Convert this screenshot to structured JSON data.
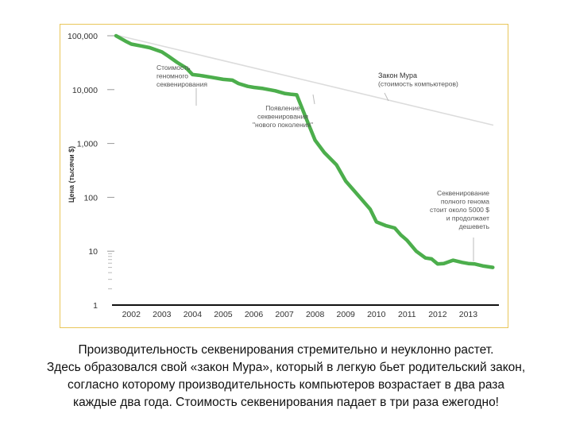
{
  "chart_data": {
    "type": "line",
    "ylabel": "Цена (тысячи $)",
    "y_scale": "log",
    "ylim": [
      1,
      100000
    ],
    "xlim": [
      2001.5,
      2014.0
    ],
    "y_ticks": [
      {
        "value": 100000,
        "label": "100,000"
      },
      {
        "value": 10000,
        "label": "10,000"
      },
      {
        "value": 1000,
        "label": "1,000"
      },
      {
        "value": 100,
        "label": "100"
      },
      {
        "value": 10,
        "label": "10"
      },
      {
        "value": 1,
        "label": "1"
      }
    ],
    "x_ticks": [
      "2002",
      "2003",
      "2004",
      "2005",
      "2006",
      "2007",
      "2008",
      "2009",
      "2010",
      "2011",
      "2012",
      "2013"
    ],
    "series": [
      {
        "color": "#4cae4c",
        "x": [
          2001.5,
          2001.8,
          2002.0,
          2002.3,
          2002.6,
          2003.0,
          2003.2,
          2003.5,
          2003.8,
          2004.0,
          2004.2,
          2004.6,
          2005.0,
          2005.3,
          2005.5,
          2005.8,
          2006.0,
          2006.3,
          2006.7,
          2007.0,
          2007.2,
          2007.4,
          2007.7,
          2008.0,
          2008.3,
          2008.7,
          2009.0,
          2009.4,
          2009.8,
          2010.0,
          2010.3,
          2010.6,
          2010.8,
          2011.0,
          2011.3,
          2011.6,
          2011.8,
          2012.0,
          2012.2,
          2012.5,
          2012.8,
          2013.0,
          2013.2,
          2013.5,
          2013.8
        ],
        "y": [
          100000,
          80000,
          70000,
          65000,
          60000,
          50000,
          42000,
          32000,
          25000,
          19000,
          18500,
          17000,
          15500,
          15000,
          13000,
          11500,
          11000,
          10500,
          9500,
          8500,
          8200,
          8000,
          3000,
          1150,
          680,
          400,
          200,
          110,
          60,
          35,
          30,
          27,
          20,
          16,
          10,
          7.5,
          7.2,
          5.8,
          5.9,
          6.8,
          6.2,
          5.9,
          5.8,
          5.3,
          5.0
        ]
      },
      {
        "name": "Закон Мура",
        "color": "#dcdcdc",
        "x": [
          2001.6,
          2013.8
        ],
        "y": [
          100000,
          2200
        ]
      }
    ],
    "annotations": [
      {
        "lines": [
          "Стоимость",
          "геномного",
          "секвенирования"
        ]
      },
      {
        "lines": [
          "Закон Мура",
          "(стоимость компьютеров)"
        ]
      },
      {
        "lines": [
          "Появление",
          "секвенирования",
          "\"нового поколения\""
        ]
      },
      {
        "lines": [
          "Секвенирование",
          "полного генома",
          "стоит около 5000 $",
          "и продолжает",
          "дешеветь"
        ]
      }
    ]
  },
  "caption": {
    "lines": [
      "Производительность секвенирования стремительно и неуклонно растет.",
      "Здесь образовался свой «закон Мура», который в легкую бьет родительский закон,",
      "согласно которому производительность компьютеров возрастает в два раза",
      "каждые два года.  Стоимость секвенирования падает в три раза ежегодно!"
    ]
  }
}
